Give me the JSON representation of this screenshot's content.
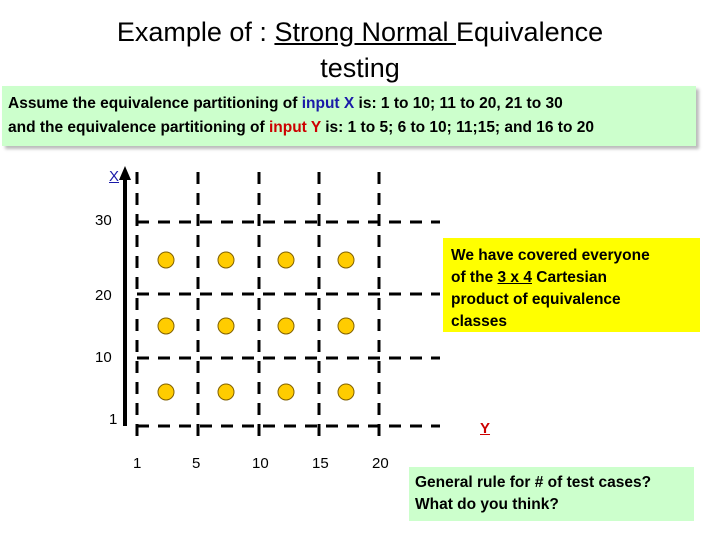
{
  "title": {
    "prefix": "Example of : ",
    "underlined": "Strong Normal ",
    "line1_rest": "Equivalence",
    "line2": "testing"
  },
  "assumption": {
    "t1": "Assume the equivalence partitioning of ",
    "input_x": "input X",
    "t2": " is:  1 to 10; 11 to 20, 21 to 30",
    "t3": "and the equivalence partitioning of ",
    "input_y": "input Y",
    "t4": " is: 1 to 5; 6 to 10; 11;15; and 16 to 20"
  },
  "axes": {
    "x_axis_label": "X",
    "y_axis_label": "Y",
    "vertical_ticks": [
      "30",
      "20",
      "10",
      "1"
    ],
    "horizontal_ticks": [
      "1",
      "5",
      "10",
      "15",
      "20"
    ]
  },
  "test_points": {
    "rows": 3,
    "cols": 4,
    "color": "#ffcc00"
  },
  "note": {
    "l1": "We have covered everyone",
    "l2_pre": "of the ",
    "l2_u": "3 x 4",
    "l2_post": " Cartesian",
    "l3": "product of equivalence",
    "l4": "classes"
  },
  "rule": {
    "l1": "General rule for # of test cases?",
    "l2": "What do you think?"
  },
  "colors": {
    "blue": "#1a1aa8",
    "red": "#cc0000",
    "green_box": "#ccffcc",
    "yellow_box": "#ffff00"
  }
}
